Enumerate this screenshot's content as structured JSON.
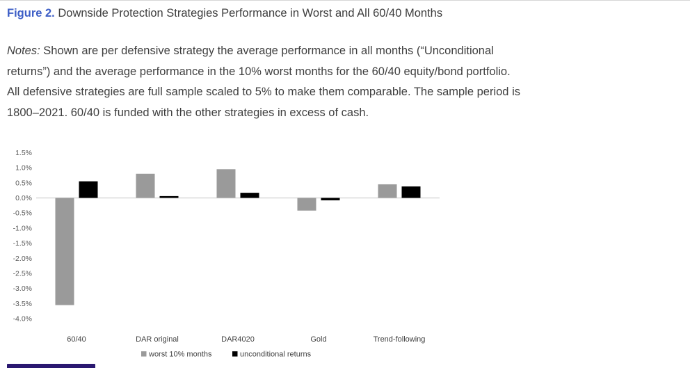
{
  "figure": {
    "label": "Figure 2.",
    "title": "Downside Protection Strategies Performance in Worst and All 60/40 Months"
  },
  "notes": {
    "label": "Notes:",
    "line1_rest": "Shown are per defensive strategy the average performance in all months (“Unconditional",
    "line2": "returns”) and the average performance in the 10% worst months for the 60/40 equity/bond portfolio.",
    "line3": "All defensive strategies are full sample scaled to 5% to make them comparable. The sample period is",
    "line4": "1800–2021. 60/40 is funded with the other strategies in excess of cash."
  },
  "chart_data": {
    "type": "bar",
    "title": "",
    "xlabel": "",
    "ylabel": "",
    "categories": [
      "60/40",
      "DAR original",
      "DAR4020",
      "Gold",
      "Trend-following"
    ],
    "series": [
      {
        "name": "worst 10% months",
        "color": "#9a9a9a",
        "values": [
          -3.55,
          0.8,
          0.95,
          -0.42,
          0.45
        ]
      },
      {
        "name": "unconditional returns",
        "color": "#000000",
        "values": [
          0.55,
          0.06,
          0.17,
          -0.08,
          0.38
        ]
      }
    ],
    "y_ticks": [
      "1.5%",
      "1.0%",
      "0.5%",
      "0.0%",
      "-0.5%",
      "-1.0%",
      "-1.5%",
      "-2.0%",
      "-2.5%",
      "-3.0%",
      "-3.5%",
      "-4.0%"
    ],
    "ylim": [
      -4.0,
      1.5
    ],
    "y_tick_step": 0.5,
    "grid": false,
    "legend_position": "bottom",
    "axis_line_color": "#d9d9d9"
  },
  "colors": {
    "figure_label": "#3d5ec6",
    "partial_button": "#2a1870"
  }
}
